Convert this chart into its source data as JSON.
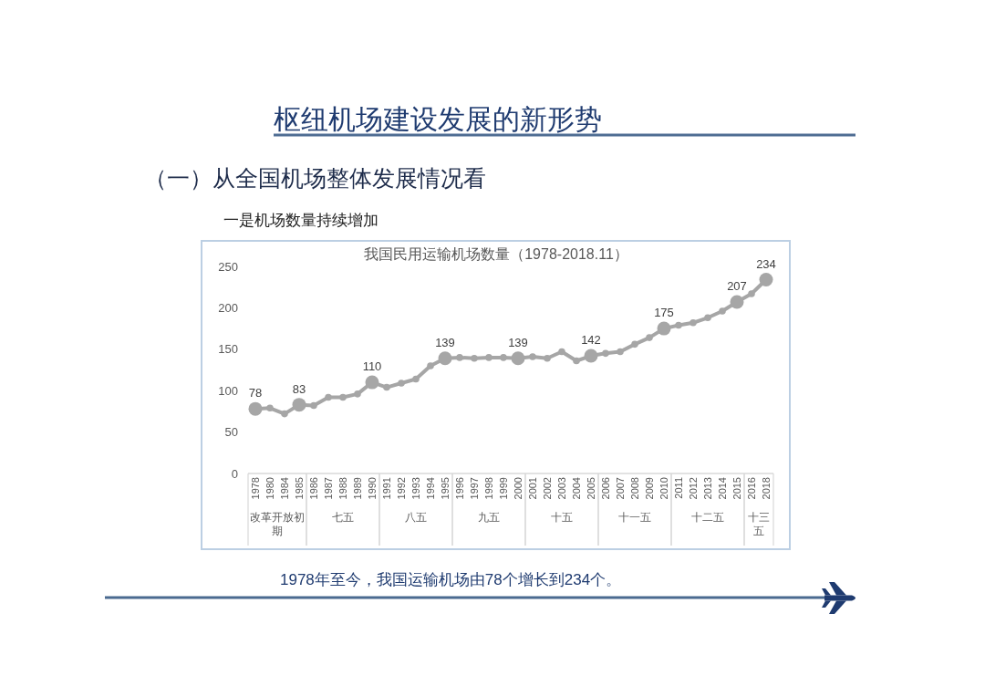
{
  "chart_data": {
    "type": "line",
    "title": "我国民用运输机场数量（1978-2018.11）",
    "annotations": [
      "枢纽机场建设发展的新形势",
      "（一）从全国机场整体发展情况看",
      "一是机场数量持续增加",
      "1978年至今，我国运输机场由78个增长到234个。",
      "改革开放初期",
      "七五",
      "八五",
      "九五",
      "十五",
      "十一五",
      "十二五",
      "十三五"
    ],
    "categories": [
      "1978",
      "1980",
      "1984",
      "1985",
      "1986",
      "1987",
      "1988",
      "1989",
      "1990",
      "1991",
      "1992",
      "1993",
      "1994",
      "1995",
      "1996",
      "1997",
      "1998",
      "1999",
      "2000",
      "2001",
      "2002",
      "2003",
      "2004",
      "2005",
      "2006",
      "2007",
      "2008",
      "2009",
      "2010",
      "2011",
      "2012",
      "2013",
      "2014",
      "2015",
      "2016",
      "2018"
    ],
    "values": [
      78,
      79,
      72,
      83,
      82,
      92,
      92,
      96,
      110,
      104,
      109,
      114,
      130,
      139,
      140,
      139,
      140,
      140,
      139,
      141,
      139,
      147,
      136,
      142,
      145,
      147,
      156,
      164,
      175,
      179,
      182,
      188,
      196,
      207,
      217,
      234
    ],
    "value_labels": [
      "78",
      null,
      null,
      "83",
      null,
      null,
      null,
      null,
      "110",
      null,
      null,
      null,
      null,
      "139",
      null,
      null,
      null,
      null,
      "139",
      null,
      null,
      null,
      null,
      "142",
      null,
      null,
      null,
      null,
      "175",
      null,
      null,
      null,
      null,
      "207",
      null,
      "234"
    ],
    "color": "#a6a6a6",
    "marker": "circle",
    "ylim": [
      0,
      250
    ],
    "yticks": [
      0,
      50,
      100,
      150,
      200,
      250
    ]
  }
}
